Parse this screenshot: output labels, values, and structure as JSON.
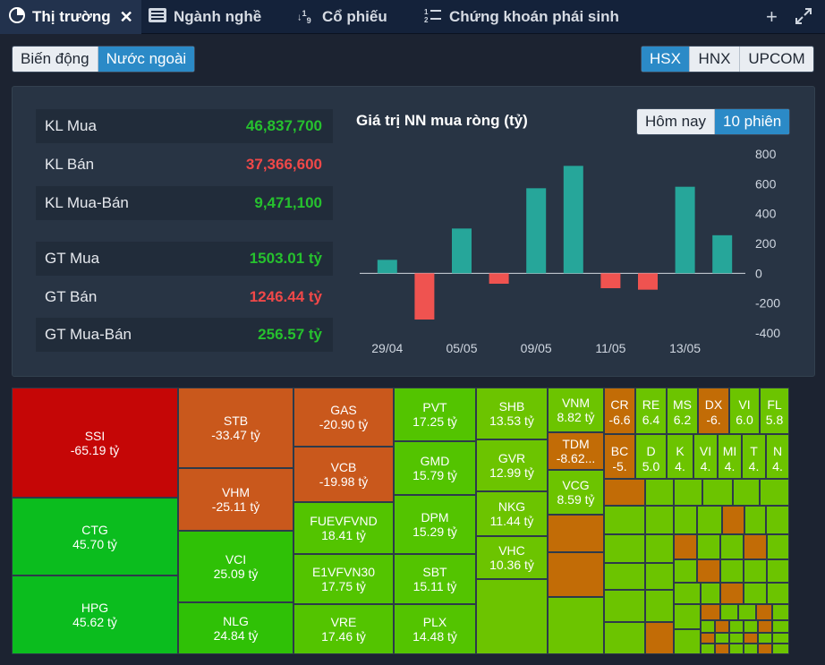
{
  "tabs": [
    {
      "label": "Thị trường",
      "icon": "pie-chart-icon"
    },
    {
      "label": "Ngành nghề",
      "icon": "list-icon"
    },
    {
      "label": "Cổ phiếu",
      "icon": "sort-numeric-icon"
    },
    {
      "label": "Chứng khoán phái sinh",
      "icon": "ordered-list-icon"
    }
  ],
  "toolbar": {
    "add_icon": "plus-icon",
    "expand_icon": "expand-icon"
  },
  "view_toggle": {
    "options": [
      "Biến động",
      "Nước ngoài"
    ],
    "selected": "Nước ngoài"
  },
  "exchange_toggle": {
    "options": [
      "HSX",
      "HNX",
      "UPCOM"
    ],
    "selected": "HSX"
  },
  "stats": [
    {
      "label": "KL Mua",
      "value": "46,837,700",
      "color": "green"
    },
    {
      "label": "KL Bán",
      "value": "37,366,600",
      "color": "red"
    },
    {
      "label": "KL Mua-Bán",
      "value": "9,471,100",
      "color": "green"
    },
    {
      "label": "GT Mua",
      "value": "1503.01 tỷ",
      "color": "green"
    },
    {
      "label": "GT Bán",
      "value": "1246.44 tỷ",
      "color": "red"
    },
    {
      "label": "GT Mua-Bán",
      "value": "256.57 tỷ",
      "color": "green"
    }
  ],
  "period_toggle": {
    "options": [
      "Hôm nay",
      "10 phiên"
    ],
    "selected": "10 phiên"
  },
  "colors": {
    "positive": "#26a69a",
    "negative": "#ef5350",
    "green_text": "#26c12e",
    "red_text": "#f04848"
  },
  "chart_data": {
    "type": "bar",
    "title": "Giá trị NN mua ròng (tỷ)",
    "categories": [
      "29/04",
      "",
      "05/05",
      "",
      "09/05",
      "",
      "11/05",
      "",
      "13/05",
      ""
    ],
    "values": [
      90,
      -310,
      300,
      -70,
      570,
      720,
      -100,
      -110,
      580,
      255
    ],
    "ylim": [
      -400,
      800
    ],
    "yticks": [
      800,
      600,
      400,
      200,
      0,
      -200,
      -400
    ],
    "xlabel": "",
    "ylabel": "",
    "grid": false
  },
  "heatmap": [
    {
      "code": "SSI",
      "value": "-65.19 tỷ"
    },
    {
      "code": "CTG",
      "value": "45.70 tỷ"
    },
    {
      "code": "HPG",
      "value": "45.62 tỷ"
    },
    {
      "code": "STB",
      "value": "-33.47 tỷ"
    },
    {
      "code": "VHM",
      "value": "-25.11 tỷ"
    },
    {
      "code": "VCI",
      "value": "25.09 tỷ"
    },
    {
      "code": "NLG",
      "value": "24.84 tỷ"
    },
    {
      "code": "GAS",
      "value": "-20.90 tỷ"
    },
    {
      "code": "VCB",
      "value": "-19.98 tỷ"
    },
    {
      "code": "FUEVFVND",
      "value": "18.41 tỷ"
    },
    {
      "code": "E1VFVN30",
      "value": "17.75 tỷ"
    },
    {
      "code": "VRE",
      "value": "17.46 tỷ"
    },
    {
      "code": "PVT",
      "value": "17.25 tỷ"
    },
    {
      "code": "GMD",
      "value": "15.79 tỷ"
    },
    {
      "code": "DPM",
      "value": "15.29 tỷ"
    },
    {
      "code": "SBT",
      "value": "15.11 tỷ"
    },
    {
      "code": "PLX",
      "value": "14.48 tỷ"
    },
    {
      "code": "SHB",
      "value": "13.53 tỷ"
    },
    {
      "code": "GVR",
      "value": "12.99 tỷ"
    },
    {
      "code": "NKG",
      "value": "11.44 tỷ"
    },
    {
      "code": "VHC",
      "value": "10.36 tỷ"
    },
    {
      "code": "VNM",
      "value": "8.82 tỷ"
    },
    {
      "code": "TDM",
      "value": "-8.62..."
    },
    {
      "code": "VCG",
      "value": "8.59 tỷ"
    },
    {
      "code": "CR",
      "value": "-6.6"
    },
    {
      "code": "RE",
      "value": "6.4"
    },
    {
      "code": "MS",
      "value": "6.2"
    },
    {
      "code": "DX",
      "value": "-6."
    },
    {
      "code": "VI",
      "value": "6.0"
    },
    {
      "code": "FL",
      "value": "5.8"
    },
    {
      "code": "BC",
      "value": "-5."
    },
    {
      "code": "D",
      "value": "5.0"
    },
    {
      "code": "K",
      "value": "4."
    },
    {
      "code": "VI",
      "value": "4."
    },
    {
      "code": "MI",
      "value": "4."
    },
    {
      "code": "T",
      "value": "4."
    },
    {
      "code": "N",
      "value": "4."
    }
  ]
}
